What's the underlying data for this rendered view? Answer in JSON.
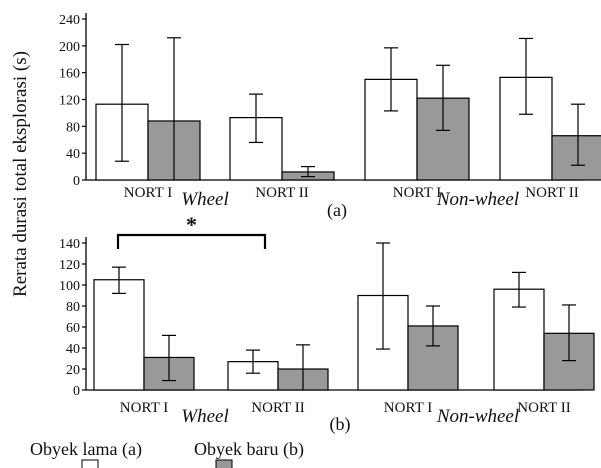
{
  "ylabel": "Rerata durasi total eksplorasi (s)",
  "legend": [
    {
      "label": "Obyek lama (a)",
      "color": "#ffffff"
    },
    {
      "label": "Obyek baru (b)",
      "color": "#999999"
    }
  ],
  "chart_data": [
    {
      "type": "bar",
      "panel_label": "(a)",
      "categories": [
        "NORT I",
        "NORT II",
        "NORT I",
        "NORT II"
      ],
      "groups": [
        "Wheel",
        "Non-wheel"
      ],
      "ylim": [
        0,
        240
      ],
      "yticks": [
        0,
        40,
        80,
        120,
        160,
        200,
        240
      ],
      "series": [
        {
          "name": "Obyek lama (a)",
          "color": "#ffffff",
          "values": [
            113,
            93,
            150,
            153
          ],
          "err_low": [
            28,
            56,
            103,
            98
          ],
          "err_high": [
            202,
            128,
            197,
            211
          ]
        },
        {
          "name": "Obyek baru (b)",
          "color": "#999999",
          "values": [
            88,
            12,
            122,
            66
          ],
          "err_low": [
            -36,
            5,
            74,
            22
          ],
          "err_high": [
            212,
            20,
            171,
            113
          ]
        }
      ],
      "annotations": []
    },
    {
      "type": "bar",
      "panel_label": "(b)",
      "categories": [
        "NORT I",
        "NORT II",
        "NORT I",
        "NORT II"
      ],
      "groups": [
        "Wheel",
        "Non-wheel"
      ],
      "ylim": [
        0,
        140
      ],
      "yticks": [
        0,
        20,
        40,
        60,
        80,
        100,
        120,
        140
      ],
      "series": [
        {
          "name": "Obyek lama (a)",
          "color": "#ffffff",
          "values": [
            105,
            27,
            90,
            96
          ],
          "err_low": [
            92,
            16,
            39,
            79
          ],
          "err_high": [
            117,
            38,
            142,
            112
          ]
        },
        {
          "name": "Obyek baru (b)",
          "color": "#999999",
          "values": [
            31,
            20,
            61,
            54
          ],
          "err_low": [
            9,
            -2,
            42,
            28
          ],
          "err_high": [
            52,
            43,
            80,
            81
          ]
        }
      ],
      "annotations": [
        {
          "text": "*",
          "from": "Wheel NORT I",
          "to": "Wheel NORT II"
        }
      ]
    }
  ]
}
